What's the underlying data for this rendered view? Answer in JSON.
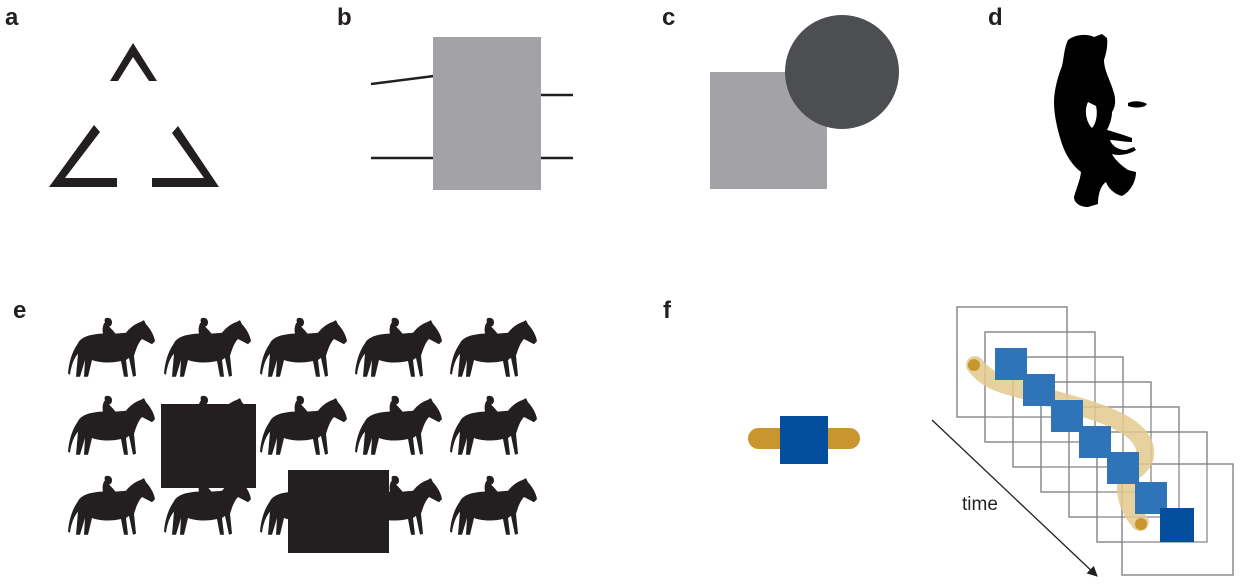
{
  "panels": {
    "a": {
      "label": "a"
    },
    "b": {
      "label": "b"
    },
    "c": {
      "label": "c"
    },
    "d": {
      "label": "d"
    },
    "e": {
      "label": "e"
    },
    "f": {
      "label": "f",
      "time_label": "time"
    }
  },
  "colors": {
    "ink": "#231f20",
    "gray_box": "#a3a3a7",
    "dark_circle": "#4d4e51",
    "silhouette": "#000000",
    "occluder": "#231f20",
    "gold": "#c8952f",
    "gold_trail": "#e2c98e",
    "blue": "#034f9e",
    "blue_light": "#2f74b8",
    "frame": "#808080"
  },
  "icons": {
    "horse": "horse-rider-icon"
  },
  "grid": {
    "rows": 3,
    "cols": 5
  },
  "frames": {
    "count": 8
  }
}
